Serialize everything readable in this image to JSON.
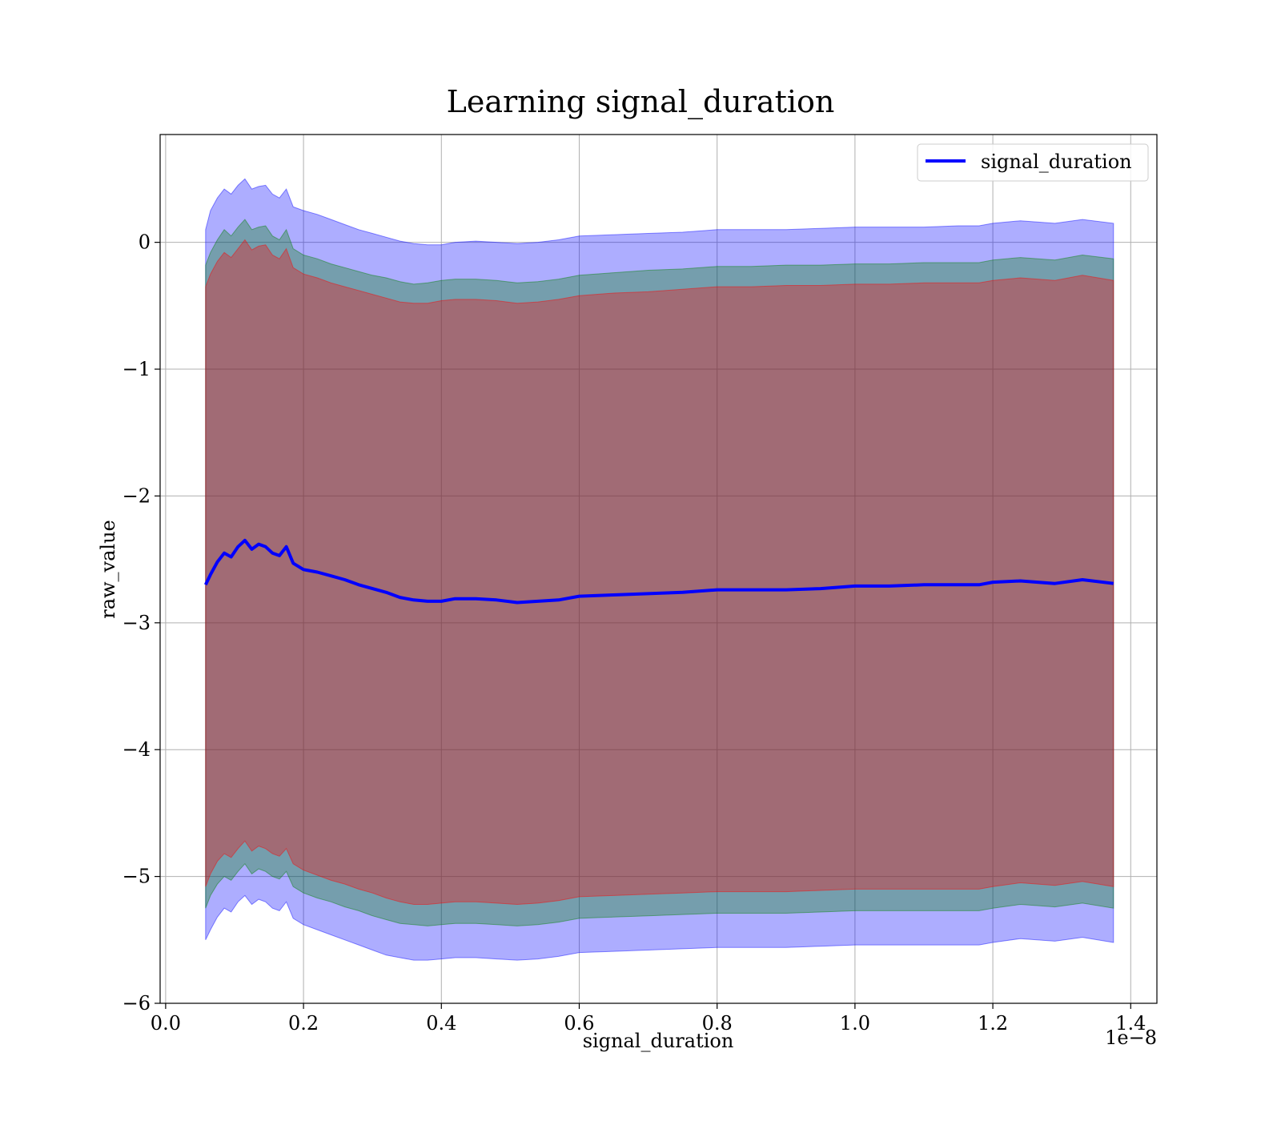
{
  "chart_data": {
    "type": "line",
    "title": "Learning signal_duration",
    "xlabel": "signal_duration",
    "ylabel": "raw_value",
    "x_offset_label": "1e−8",
    "xlim": [
      -0.008,
      1.438
    ],
    "ylim": [
      -6.0,
      0.85
    ],
    "xticks": [
      0.0,
      0.2,
      0.4,
      0.6,
      0.8,
      1.0,
      1.2,
      1.4
    ],
    "xtick_labels": [
      "0.0",
      "0.2",
      "0.4",
      "0.6",
      "0.8",
      "1.0",
      "1.2",
      "1.4"
    ],
    "yticks": [
      0,
      -1,
      -2,
      -3,
      -4,
      -5,
      -6
    ],
    "ytick_labels": [
      "0",
      "−1",
      "−2",
      "−3",
      "−4",
      "−5",
      "−6"
    ],
    "grid": true,
    "legend_position": "top-right",
    "series": [
      {
        "name": "signal_duration",
        "color": "#0000ff",
        "x": [
          0.058,
          0.065,
          0.075,
          0.085,
          0.095,
          0.105,
          0.115,
          0.125,
          0.135,
          0.145,
          0.155,
          0.165,
          0.175,
          0.185,
          0.2,
          0.22,
          0.24,
          0.26,
          0.28,
          0.3,
          0.32,
          0.34,
          0.36,
          0.38,
          0.4,
          0.42,
          0.45,
          0.48,
          0.51,
          0.54,
          0.57,
          0.6,
          0.65,
          0.7,
          0.75,
          0.8,
          0.85,
          0.9,
          0.95,
          1.0,
          1.05,
          1.1,
          1.15,
          1.18,
          1.2,
          1.24,
          1.29,
          1.33,
          1.375
        ],
        "y": [
          -2.7,
          -2.62,
          -2.52,
          -2.45,
          -2.48,
          -2.4,
          -2.35,
          -2.42,
          -2.38,
          -2.4,
          -2.45,
          -2.47,
          -2.4,
          -2.53,
          -2.58,
          -2.6,
          -2.63,
          -2.66,
          -2.7,
          -2.73,
          -2.76,
          -2.8,
          -2.82,
          -2.83,
          -2.83,
          -2.81,
          -2.81,
          -2.82,
          -2.84,
          -2.83,
          -2.82,
          -2.79,
          -2.78,
          -2.77,
          -2.76,
          -2.74,
          -2.74,
          -2.74,
          -2.73,
          -2.71,
          -2.71,
          -2.7,
          -2.7,
          -2.7,
          -2.68,
          -2.67,
          -2.69,
          -2.66,
          -2.69
        ]
      }
    ],
    "bands": [
      {
        "color": "#0000ff",
        "opacity": 0.32,
        "upper": [
          0.1,
          0.25,
          0.35,
          0.42,
          0.38,
          0.45,
          0.5,
          0.42,
          0.44,
          0.45,
          0.38,
          0.35,
          0.42,
          0.28,
          0.25,
          0.22,
          0.18,
          0.14,
          0.1,
          0.07,
          0.04,
          0.01,
          -0.01,
          -0.02,
          -0.02,
          0.0,
          0.01,
          0.0,
          -0.01,
          0.0,
          0.02,
          0.05,
          0.06,
          0.07,
          0.08,
          0.1,
          0.1,
          0.1,
          0.11,
          0.12,
          0.12,
          0.12,
          0.13,
          0.13,
          0.15,
          0.17,
          0.15,
          0.18,
          0.15
        ],
        "lower": [
          -5.5,
          -5.42,
          -5.32,
          -5.25,
          -5.28,
          -5.2,
          -5.15,
          -5.22,
          -5.18,
          -5.2,
          -5.25,
          -5.27,
          -5.2,
          -5.33,
          -5.38,
          -5.42,
          -5.46,
          -5.5,
          -5.54,
          -5.58,
          -5.62,
          -5.64,
          -5.66,
          -5.66,
          -5.65,
          -5.64,
          -5.64,
          -5.65,
          -5.66,
          -5.65,
          -5.63,
          -5.6,
          -5.59,
          -5.58,
          -5.57,
          -5.56,
          -5.56,
          -5.56,
          -5.55,
          -5.54,
          -5.54,
          -5.54,
          -5.54,
          -5.54,
          -5.52,
          -5.49,
          -5.51,
          -5.48,
          -5.52
        ]
      },
      {
        "color": "#008000",
        "opacity": 0.32,
        "upper": [
          -0.18,
          -0.08,
          0.02,
          0.1,
          0.05,
          0.12,
          0.18,
          0.1,
          0.12,
          0.13,
          0.05,
          0.02,
          0.1,
          -0.05,
          -0.1,
          -0.13,
          -0.17,
          -0.2,
          -0.23,
          -0.26,
          -0.28,
          -0.31,
          -0.33,
          -0.32,
          -0.3,
          -0.29,
          -0.29,
          -0.3,
          -0.32,
          -0.31,
          -0.29,
          -0.26,
          -0.24,
          -0.22,
          -0.21,
          -0.19,
          -0.19,
          -0.18,
          -0.18,
          -0.17,
          -0.17,
          -0.16,
          -0.16,
          -0.16,
          -0.14,
          -0.12,
          -0.14,
          -0.1,
          -0.13
        ],
        "lower": [
          -5.25,
          -5.15,
          -5.06,
          -5.0,
          -5.03,
          -4.96,
          -4.9,
          -4.98,
          -4.94,
          -4.96,
          -5.0,
          -5.02,
          -4.96,
          -5.08,
          -5.13,
          -5.17,
          -5.2,
          -5.24,
          -5.27,
          -5.31,
          -5.34,
          -5.37,
          -5.38,
          -5.39,
          -5.38,
          -5.37,
          -5.37,
          -5.38,
          -5.39,
          -5.38,
          -5.36,
          -5.33,
          -5.32,
          -5.31,
          -5.3,
          -5.29,
          -5.29,
          -5.29,
          -5.28,
          -5.27,
          -5.27,
          -5.27,
          -5.27,
          -5.27,
          -5.25,
          -5.22,
          -5.24,
          -5.21,
          -5.25
        ]
      },
      {
        "color": "#ff0000",
        "opacity": 0.32,
        "upper": [
          -0.35,
          -0.25,
          -0.15,
          -0.08,
          -0.12,
          -0.05,
          0.02,
          -0.06,
          -0.03,
          -0.02,
          -0.1,
          -0.13,
          -0.05,
          -0.2,
          -0.25,
          -0.28,
          -0.32,
          -0.35,
          -0.38,
          -0.41,
          -0.44,
          -0.47,
          -0.48,
          -0.48,
          -0.46,
          -0.45,
          -0.45,
          -0.46,
          -0.48,
          -0.47,
          -0.45,
          -0.42,
          -0.4,
          -0.39,
          -0.37,
          -0.35,
          -0.35,
          -0.34,
          -0.34,
          -0.33,
          -0.33,
          -0.32,
          -0.32,
          -0.32,
          -0.3,
          -0.28,
          -0.3,
          -0.26,
          -0.3
        ],
        "lower": [
          -5.08,
          -4.98,
          -4.88,
          -4.82,
          -4.85,
          -4.78,
          -4.72,
          -4.8,
          -4.76,
          -4.78,
          -4.82,
          -4.84,
          -4.78,
          -4.9,
          -4.95,
          -4.99,
          -5.03,
          -5.06,
          -5.1,
          -5.13,
          -5.17,
          -5.2,
          -5.22,
          -5.22,
          -5.21,
          -5.2,
          -5.2,
          -5.21,
          -5.22,
          -5.21,
          -5.19,
          -5.16,
          -5.15,
          -5.14,
          -5.13,
          -5.12,
          -5.12,
          -5.12,
          -5.11,
          -5.1,
          -5.1,
          -5.1,
          -5.1,
          -5.1,
          -5.08,
          -5.05,
          -5.07,
          -5.04,
          -5.08
        ]
      }
    ]
  }
}
